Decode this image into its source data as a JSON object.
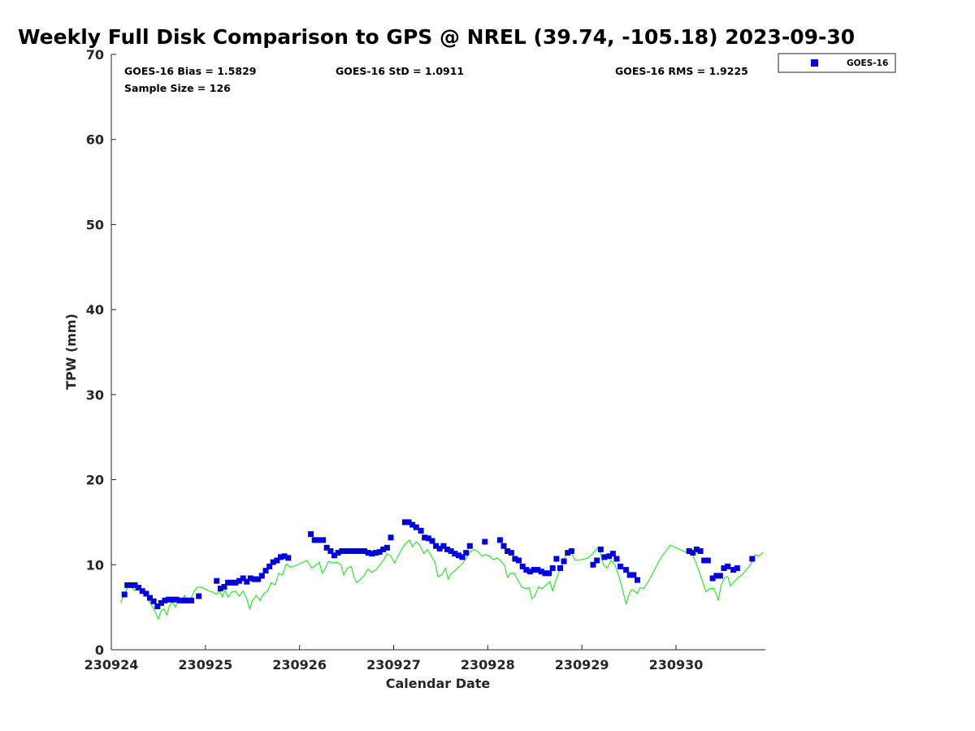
{
  "chart_data": {
    "type": "scatter",
    "title": "Weekly Full Disk Comparison to GPS @ NREL (39.74, -105.18) 2023-09-30",
    "xlabel": "Calendar Date",
    "ylabel": "TPW (mm)",
    "xlim": [
      0,
      6.95
    ],
    "ylim": [
      0,
      70
    ],
    "yticks": [
      0,
      10,
      20,
      30,
      40,
      50,
      60,
      70
    ],
    "xticks": [
      {
        "value": 0,
        "label": "230924"
      },
      {
        "value": 1,
        "label": "230925"
      },
      {
        "value": 2,
        "label": "230926"
      },
      {
        "value": 3,
        "label": "230927"
      },
      {
        "value": 4,
        "label": "230928"
      },
      {
        "value": 5,
        "label": "230929"
      },
      {
        "value": 6,
        "label": "230930"
      }
    ],
    "stats": {
      "bias": "GOES-16 Bias = 1.5829",
      "std": "GOES-16 StD = 1.0911",
      "rms": "GOES-16 RMS = 1.9225",
      "sample": "Sample Size = 126"
    },
    "legend": {
      "label": "GOES-16",
      "position": "top-right-outside"
    },
    "colors": {
      "goes": "#0000dd",
      "gps": "#00ee00"
    },
    "series": [
      {
        "name": "GOES-16",
        "marker": "square",
        "points": [
          [
            0.14,
            6.5
          ],
          [
            0.17,
            7.6
          ],
          [
            0.21,
            7.6
          ],
          [
            0.25,
            7.6
          ],
          [
            0.29,
            7.3
          ],
          [
            0.33,
            6.9
          ],
          [
            0.37,
            6.6
          ],
          [
            0.41,
            6.1
          ],
          [
            0.45,
            5.7
          ],
          [
            0.49,
            5.1
          ],
          [
            0.53,
            5.5
          ],
          [
            0.57,
            5.8
          ],
          [
            0.61,
            5.9
          ],
          [
            0.65,
            5.9
          ],
          [
            0.69,
            5.9
          ],
          [
            0.73,
            5.8
          ],
          [
            0.77,
            5.8
          ],
          [
            0.81,
            5.8
          ],
          [
            0.85,
            5.8
          ],
          [
            0.93,
            6.3
          ],
          [
            1.12,
            8.1
          ],
          [
            1.16,
            7.2
          ],
          [
            1.2,
            7.4
          ],
          [
            1.24,
            7.9
          ],
          [
            1.28,
            7.9
          ],
          [
            1.32,
            7.9
          ],
          [
            1.36,
            8.1
          ],
          [
            1.4,
            8.4
          ],
          [
            1.44,
            8.0
          ],
          [
            1.48,
            8.4
          ],
          [
            1.52,
            8.3
          ],
          [
            1.56,
            8.3
          ],
          [
            1.6,
            8.7
          ],
          [
            1.64,
            9.3
          ],
          [
            1.68,
            9.8
          ],
          [
            1.72,
            10.3
          ],
          [
            1.76,
            10.5
          ],
          [
            1.8,
            10.9
          ],
          [
            1.84,
            11.0
          ],
          [
            1.88,
            10.8
          ],
          [
            2.12,
            13.6
          ],
          [
            2.16,
            12.9
          ],
          [
            2.2,
            12.9
          ],
          [
            2.25,
            12.9
          ],
          [
            2.29,
            12.0
          ],
          [
            2.33,
            11.6
          ],
          [
            2.37,
            11.1
          ],
          [
            2.41,
            11.4
          ],
          [
            2.45,
            11.6
          ],
          [
            2.49,
            11.6
          ],
          [
            2.53,
            11.6
          ],
          [
            2.57,
            11.6
          ],
          [
            2.61,
            11.6
          ],
          [
            2.65,
            11.6
          ],
          [
            2.69,
            11.6
          ],
          [
            2.73,
            11.4
          ],
          [
            2.77,
            11.3
          ],
          [
            2.81,
            11.4
          ],
          [
            2.85,
            11.5
          ],
          [
            2.89,
            11.8
          ],
          [
            2.93,
            12.0
          ],
          [
            2.97,
            13.2
          ],
          [
            3.12,
            15.0
          ],
          [
            3.16,
            15.0
          ],
          [
            3.2,
            14.7
          ],
          [
            3.24,
            14.4
          ],
          [
            3.29,
            14.0
          ],
          [
            3.33,
            13.2
          ],
          [
            3.37,
            13.1
          ],
          [
            3.41,
            12.8
          ],
          [
            3.45,
            12.2
          ],
          [
            3.49,
            11.9
          ],
          [
            3.53,
            12.2
          ],
          [
            3.57,
            11.8
          ],
          [
            3.61,
            11.6
          ],
          [
            3.65,
            11.3
          ],
          [
            3.69,
            11.1
          ],
          [
            3.73,
            10.9
          ],
          [
            3.77,
            11.4
          ],
          [
            3.81,
            12.2
          ],
          [
            3.97,
            12.7
          ],
          [
            4.13,
            12.9
          ],
          [
            4.17,
            12.2
          ],
          [
            4.21,
            11.6
          ],
          [
            4.25,
            11.4
          ],
          [
            4.29,
            10.7
          ],
          [
            4.33,
            10.5
          ],
          [
            4.37,
            9.8
          ],
          [
            4.41,
            9.4
          ],
          [
            4.45,
            9.2
          ],
          [
            4.49,
            9.4
          ],
          [
            4.53,
            9.4
          ],
          [
            4.57,
            9.2
          ],
          [
            4.61,
            9.0
          ],
          [
            4.65,
            9.0
          ],
          [
            4.69,
            9.6
          ],
          [
            4.73,
            10.7
          ],
          [
            4.77,
            9.6
          ],
          [
            4.81,
            10.4
          ],
          [
            4.85,
            11.4
          ],
          [
            4.89,
            11.6
          ],
          [
            5.12,
            10.0
          ],
          [
            5.16,
            10.5
          ],
          [
            5.2,
            11.8
          ],
          [
            5.24,
            10.9
          ],
          [
            5.29,
            11.0
          ],
          [
            5.33,
            11.3
          ],
          [
            5.37,
            10.7
          ],
          [
            5.41,
            9.8
          ],
          [
            5.47,
            9.4
          ],
          [
            5.51,
            8.8
          ],
          [
            5.55,
            8.8
          ],
          [
            5.59,
            8.2
          ],
          [
            6.14,
            11.6
          ],
          [
            6.18,
            11.4
          ],
          [
            6.22,
            11.8
          ],
          [
            6.26,
            11.6
          ],
          [
            6.3,
            10.5
          ],
          [
            6.34,
            10.5
          ],
          [
            6.39,
            8.4
          ],
          [
            6.43,
            8.7
          ],
          [
            6.47,
            8.7
          ],
          [
            6.51,
            9.6
          ],
          [
            6.55,
            9.8
          ],
          [
            6.61,
            9.4
          ],
          [
            6.65,
            9.6
          ],
          [
            6.81,
            10.7
          ]
        ]
      },
      {
        "name": "GPS",
        "line": true,
        "points": [
          [
            0.1,
            5.5
          ],
          [
            0.14,
            6.6
          ],
          [
            0.18,
            7.4
          ],
          [
            0.22,
            7.3
          ],
          [
            0.25,
            6.9
          ],
          [
            0.27,
            7.6
          ],
          [
            0.3,
            7.2
          ],
          [
            0.33,
            7.0
          ],
          [
            0.36,
            6.6
          ],
          [
            0.4,
            5.8
          ],
          [
            0.44,
            5.0
          ],
          [
            0.47,
            4.4
          ],
          [
            0.5,
            3.6
          ],
          [
            0.53,
            4.6
          ],
          [
            0.56,
            4.8
          ],
          [
            0.59,
            4.1
          ],
          [
            0.62,
            5.2
          ],
          [
            0.65,
            5.6
          ],
          [
            0.68,
            5.0
          ],
          [
            0.71,
            5.8
          ],
          [
            0.74,
            5.6
          ],
          [
            0.78,
            6.4
          ],
          [
            0.81,
            5.7
          ],
          [
            0.85,
            6.1
          ],
          [
            0.88,
            6.9
          ],
          [
            0.92,
            7.4
          ],
          [
            0.97,
            7.3
          ],
          [
            1.02,
            7.0
          ],
          [
            1.07,
            6.8
          ],
          [
            1.12,
            6.5
          ],
          [
            1.15,
            7.0
          ],
          [
            1.18,
            6.2
          ],
          [
            1.21,
            7.0
          ],
          [
            1.24,
            6.2
          ],
          [
            1.28,
            6.8
          ],
          [
            1.32,
            6.9
          ],
          [
            1.36,
            6.3
          ],
          [
            1.4,
            6.9
          ],
          [
            1.44,
            6.0
          ],
          [
            1.47,
            4.8
          ],
          [
            1.5,
            5.8
          ],
          [
            1.54,
            6.4
          ],
          [
            1.58,
            5.8
          ],
          [
            1.62,
            6.6
          ],
          [
            1.66,
            6.9
          ],
          [
            1.7,
            7.9
          ],
          [
            1.74,
            7.6
          ],
          [
            1.78,
            9.0
          ],
          [
            1.82,
            8.8
          ],
          [
            1.86,
            10.1
          ],
          [
            1.9,
            9.7
          ],
          [
            1.96,
            9.9
          ],
          [
            2.02,
            10.2
          ],
          [
            2.08,
            10.5
          ],
          [
            2.13,
            9.6
          ],
          [
            2.17,
            9.9
          ],
          [
            2.21,
            10.3
          ],
          [
            2.24,
            9.0
          ],
          [
            2.27,
            9.5
          ],
          [
            2.31,
            10.4
          ],
          [
            2.35,
            10.2
          ],
          [
            2.4,
            10.3
          ],
          [
            2.44,
            10.0
          ],
          [
            2.47,
            8.8
          ],
          [
            2.51,
            9.6
          ],
          [
            2.55,
            9.8
          ],
          [
            2.58,
            8.5
          ],
          [
            2.61,
            7.9
          ],
          [
            2.65,
            8.3
          ],
          [
            2.69,
            8.8
          ],
          [
            2.73,
            9.5
          ],
          [
            2.77,
            9.1
          ],
          [
            2.81,
            9.4
          ],
          [
            2.85,
            9.9
          ],
          [
            2.89,
            10.5
          ],
          [
            2.93,
            11.3
          ],
          [
            2.97,
            11.0
          ],
          [
            3.01,
            10.2
          ],
          [
            3.05,
            11.1
          ],
          [
            3.09,
            11.9
          ],
          [
            3.13,
            12.5
          ],
          [
            3.17,
            12.9
          ],
          [
            3.2,
            12.1
          ],
          [
            3.24,
            12.7
          ],
          [
            3.28,
            12.3
          ],
          [
            3.32,
            11.3
          ],
          [
            3.36,
            11.8
          ],
          [
            3.4,
            11.0
          ],
          [
            3.44,
            10.3
          ],
          [
            3.47,
            8.6
          ],
          [
            3.51,
            8.8
          ],
          [
            3.55,
            9.6
          ],
          [
            3.58,
            8.3
          ],
          [
            3.61,
            8.9
          ],
          [
            3.65,
            9.3
          ],
          [
            3.69,
            9.7
          ],
          [
            3.73,
            10.1
          ],
          [
            3.78,
            10.9
          ],
          [
            3.82,
            11.6
          ],
          [
            3.86,
            11.8
          ],
          [
            3.9,
            11.5
          ],
          [
            3.94,
            11.0
          ],
          [
            3.98,
            11.2
          ],
          [
            4.02,
            11.0
          ],
          [
            4.06,
            10.6
          ],
          [
            4.1,
            10.8
          ],
          [
            4.14,
            10.4
          ],
          [
            4.18,
            9.9
          ],
          [
            4.21,
            8.5
          ],
          [
            4.24,
            9.0
          ],
          [
            4.28,
            9.0
          ],
          [
            4.32,
            8.2
          ],
          [
            4.36,
            7.4
          ],
          [
            4.4,
            7.2
          ],
          [
            4.44,
            7.3
          ],
          [
            4.47,
            6.0
          ],
          [
            4.5,
            6.3
          ],
          [
            4.54,
            7.4
          ],
          [
            4.58,
            7.2
          ],
          [
            4.62,
            7.6
          ],
          [
            4.66,
            8.0
          ],
          [
            4.69,
            6.9
          ],
          [
            4.72,
            8.0
          ],
          [
            4.76,
            9.2
          ],
          [
            4.8,
            10.4
          ],
          [
            4.84,
            11.4
          ],
          [
            4.87,
            11.8
          ],
          [
            4.9,
            11.2
          ],
          [
            4.93,
            10.5
          ],
          [
            5.0,
            10.6
          ],
          [
            5.07,
            10.8
          ],
          [
            5.14,
            11.6
          ],
          [
            5.17,
            12.0
          ],
          [
            5.2,
            11.3
          ],
          [
            5.23,
            10.0
          ],
          [
            5.27,
            9.6
          ],
          [
            5.31,
            10.5
          ],
          [
            5.35,
            10.0
          ],
          [
            5.39,
            8.8
          ],
          [
            5.43,
            7.2
          ],
          [
            5.47,
            5.4
          ],
          [
            5.5,
            6.5
          ],
          [
            5.53,
            7.1
          ],
          [
            5.56,
            6.9
          ],
          [
            5.59,
            6.6
          ],
          [
            5.62,
            7.3
          ],
          [
            5.66,
            7.2
          ],
          [
            5.7,
            7.9
          ],
          [
            5.75,
            8.9
          ],
          [
            5.8,
            10.0
          ],
          [
            5.85,
            11.0
          ],
          [
            5.9,
            11.7
          ],
          [
            5.94,
            12.3
          ],
          [
            6.0,
            12.0
          ],
          [
            6.06,
            11.7
          ],
          [
            6.12,
            11.4
          ],
          [
            6.17,
            11.3
          ],
          [
            6.21,
            10.3
          ],
          [
            6.25,
            9.1
          ],
          [
            6.29,
            7.8
          ],
          [
            6.32,
            6.8
          ],
          [
            6.36,
            7.2
          ],
          [
            6.4,
            7.2
          ],
          [
            6.43,
            6.5
          ],
          [
            6.45,
            5.8
          ],
          [
            6.48,
            7.6
          ],
          [
            6.52,
            8.5
          ],
          [
            6.55,
            8.6
          ],
          [
            6.58,
            7.5
          ],
          [
            6.62,
            8.0
          ],
          [
            6.66,
            8.5
          ],
          [
            6.7,
            8.8
          ],
          [
            6.74,
            9.3
          ],
          [
            6.78,
            9.8
          ],
          [
            6.81,
            10.4
          ],
          [
            6.84,
            11.2
          ],
          [
            6.88,
            11.0
          ],
          [
            6.91,
            11.3
          ],
          [
            6.93,
            11.5
          ]
        ]
      }
    ]
  }
}
